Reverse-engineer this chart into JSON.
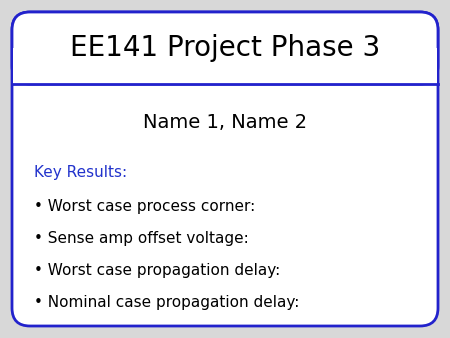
{
  "title": "EE141 Project Phase 3",
  "subtitle": "Name 1, Name 2",
  "key_results_label": "Key Results:",
  "bullet_items": [
    "Worst case process corner:",
    "Sense amp offset voltage:",
    "Worst case propagation delay:",
    "Nominal case propagation delay:"
  ],
  "outer_bg": "#d8d8d8",
  "slide_bg": "#ffffff",
  "border_color": "#2222cc",
  "title_bg": "#ffffff",
  "title_color": "#000000",
  "subtitle_color": "#000000",
  "key_results_color": "#2233cc",
  "bullet_color": "#000000",
  "title_fontsize": 20,
  "subtitle_fontsize": 14,
  "key_results_fontsize": 11,
  "bullet_fontsize": 11,
  "bullet_char": "•"
}
